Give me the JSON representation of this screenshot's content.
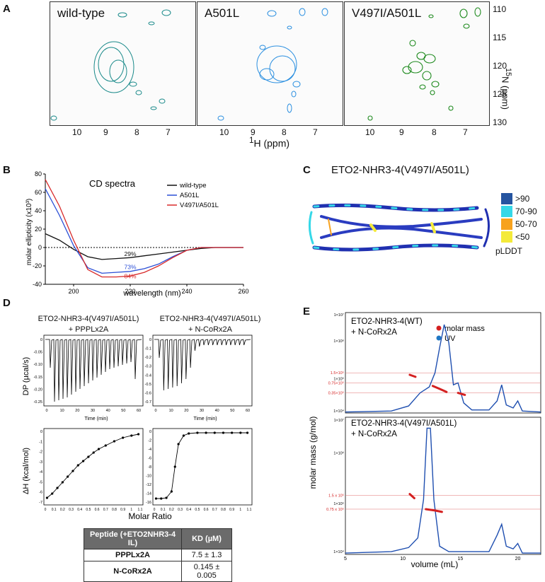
{
  "panels": {
    "a": "A",
    "b": "B",
    "c": "C",
    "d": "D",
    "e": "E"
  },
  "panelA": {
    "titles": [
      "wild-type",
      "A501L",
      "V497I/A501L"
    ],
    "x_ticks": [
      "10",
      "9",
      "8",
      "7"
    ],
    "y_ticks": [
      "110",
      "115",
      "120",
      "125",
      "130"
    ],
    "y_label_sup": "15",
    "y_label": "N (ppm)",
    "x_label_sup": "1",
    "x_label": "H (ppm)",
    "colors": [
      "#1a8a8a",
      "#2b8fe0",
      "#1e8a1e"
    ]
  },
  "panelB": {
    "chart_data": {
      "type": "line",
      "title": "CD spectra",
      "xlabel": "wavelength (nm)",
      "ylabel": "molar ellipticity (x10³)",
      "xlim": [
        190,
        260
      ],
      "ylim": [
        -40,
        80
      ],
      "x_ticks": [
        "200",
        "220",
        "240",
        "260"
      ],
      "y_ticks": [
        "-40",
        "-20",
        "0",
        "20",
        "40",
        "60",
        "80"
      ],
      "series": [
        {
          "name": "wild-type",
          "color": "#111111",
          "x": [
            190,
            195,
            200,
            205,
            210,
            215,
            220,
            225,
            230,
            235,
            240,
            245,
            250,
            255,
            260
          ],
          "y": [
            15,
            8,
            -2,
            -10,
            -13,
            -12,
            -11,
            -9,
            -7,
            -5,
            -3,
            -1,
            0,
            0,
            0
          ]
        },
        {
          "name": "A501L",
          "color": "#2b4fd6",
          "x": [
            190,
            195,
            200,
            205,
            210,
            215,
            220,
            225,
            230,
            235,
            240,
            245,
            250,
            255,
            260
          ],
          "y": [
            64,
            35,
            2,
            -22,
            -28,
            -27,
            -26,
            -23,
            -18,
            -10,
            -3,
            0,
            0,
            0,
            0
          ]
        },
        {
          "name": "V497I/A501L",
          "color": "#d82a2a",
          "x": [
            190,
            195,
            200,
            205,
            210,
            215,
            220,
            225,
            230,
            235,
            240,
            245,
            250,
            255,
            260
          ],
          "y": [
            74,
            45,
            8,
            -24,
            -32,
            -32,
            -31,
            -27,
            -20,
            -11,
            -3,
            0,
            0,
            0,
            0
          ]
        }
      ],
      "annotations": [
        {
          "text": "29%",
          "color": "#111111"
        },
        {
          "text": "73%",
          "color": "#2b4fd6"
        },
        {
          "text": "84%",
          "color": "#d82a2a"
        }
      ]
    }
  },
  "panelC": {
    "title": "ETO2-NHR3-4(V497I/A501L)",
    "legend": [
      {
        "label": ">90",
        "color": "#2554a0"
      },
      {
        "label": "70-90",
        "color": "#35d8e8"
      },
      {
        "label": "50-70",
        "color": "#f7a21e"
      },
      {
        "label": "<50",
        "color": "#f4ea3a"
      }
    ],
    "legend_title": "pLDDT"
  },
  "panelD": {
    "titles": [
      {
        "line1": "ETO2-NHR3-4(V497I/A501L)",
        "line2": "+ PPPLx2A"
      },
      {
        "line1": "ETO2-NHR3-4(V497I/A501L)",
        "line2": "+ N-CoRx2A"
      }
    ],
    "dp_label": "DP (µcal/s)",
    "dh_label": "ΔH (kcal/mol)",
    "time_label": "Time (min)",
    "molar_ratio": "Molar Ratio",
    "left_dp_ticks": [
      "0",
      "-0.05",
      "-0.10",
      "-0.15",
      "-0.20",
      "-0.25"
    ],
    "right_dp_ticks": [
      "0",
      "-0.1",
      "-0.2",
      "-0.3",
      "-0.4",
      "-0.5",
      "-0.6",
      "-0.7"
    ],
    "time_ticks": [
      "0",
      "10",
      "20",
      "30",
      "40",
      "50",
      "60"
    ],
    "left_dh_ticks": [
      "0",
      "-1",
      "-2",
      "-3",
      "-4",
      "-5",
      "-6",
      "-7"
    ],
    "right_dh_ticks": [
      "0",
      "-2",
      "-4",
      "-6",
      "-8",
      "-10",
      "-12",
      "-14",
      "-16"
    ],
    "ratio_ticks": [
      "0",
      "0.1",
      "0.2",
      "0.3",
      "0.4",
      "0.5",
      "0.6",
      "0.7",
      "0.8",
      "0.9",
      "1",
      "1.1"
    ],
    "table": {
      "headers": [
        "Peptide (+ETO2NHR3-4 IL)",
        "KD (µM)"
      ],
      "rows": [
        [
          "PPPLx2A",
          "7.5 ± 1.3"
        ],
        [
          "N-CoRx2A",
          "0.145 ± 0.005"
        ]
      ]
    }
  },
  "panelE": {
    "top": {
      "line1": "ETO2-NHR3-4(WT)",
      "line2": "+ N-CoRx2A",
      "legend": [
        "molar mass",
        "UV"
      ]
    },
    "bottom": {
      "line1": "ETO2-NHR3-4(V497I/A501L)",
      "line2": "+ N-CoRx2A"
    },
    "ylabel": "molar mass (g/mol)",
    "xlabel": "volume (mL)",
    "x_ticks": [
      "5",
      "10",
      "15",
      "20"
    ],
    "top_y_ticks": [
      "1×10⁷",
      "1×10⁶",
      "1.5×10⁵",
      "1×10⁵",
      "0.75×10⁵",
      "0.35×10⁵",
      "1×10⁴"
    ],
    "bottom_y_ticks": [
      "1×10⁷",
      "1×10⁶",
      "1.5 x 10⁵",
      "1×10⁵",
      "0.75 x 10⁵",
      "1×10⁴"
    ],
    "legend_colors": [
      "#d42020",
      "#1f77c4"
    ]
  }
}
